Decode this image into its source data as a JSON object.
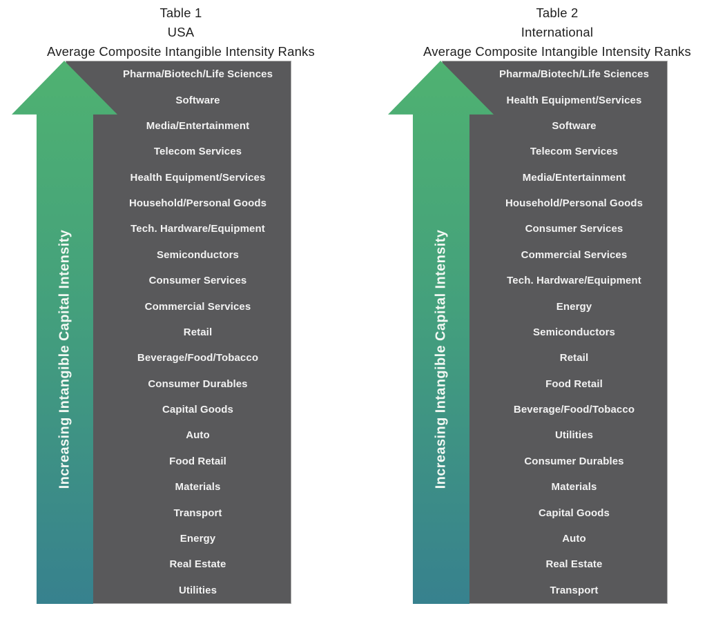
{
  "colors": {
    "background": "#ffffff",
    "panel_gray": "#59595b",
    "arrow_gradient_top": "#4fb271",
    "arrow_gradient_bottom": "#37818e",
    "item_text": "#f2f2f2",
    "title_text": "#1f1f1f"
  },
  "icons": {
    "up_arrow": "upward block arrow (css clip-path polygon)"
  },
  "figures": [
    {
      "table_label": "Table 1",
      "region": "USA",
      "subtitle": "Average Composite Intangible Intensity Ranks",
      "arrow_label": "Increasing Intangible Capital Intensity",
      "items": [
        "Pharma/Biotech/Life Sciences",
        "Software",
        "Media/Entertainment",
        "Telecom Services",
        "Health Equipment/Services",
        "Household/Personal Goods",
        "Tech. Hardware/Equipment",
        "Semiconductors",
        "Consumer Services",
        "Commercial Services",
        "Retail",
        "Beverage/Food/Tobacco",
        "Consumer Durables",
        "Capital Goods",
        "Auto",
        "Food Retail",
        "Materials",
        "Transport",
        "Energy",
        "Real Estate",
        "Utilities"
      ]
    },
    {
      "table_label": "Table 2",
      "region": "International",
      "subtitle": "Average Composite Intangible Intensity Ranks",
      "arrow_label": "Increasing Intangible Capital Intensity",
      "items": [
        "Pharma/Biotech/Life Sciences",
        "Health Equipment/Services",
        "Software",
        "Telecom Services",
        "Media/Entertainment",
        "Household/Personal Goods",
        "Consumer Services",
        "Commercial Services",
        "Tech. Hardware/Equipment",
        "Energy",
        "Semiconductors",
        "Retail",
        "Food Retail",
        "Beverage/Food/Tobacco",
        "Utilities",
        "Consumer Durables",
        "Materials",
        "Capital Goods",
        "Auto",
        "Real Estate",
        "Transport"
      ]
    }
  ]
}
